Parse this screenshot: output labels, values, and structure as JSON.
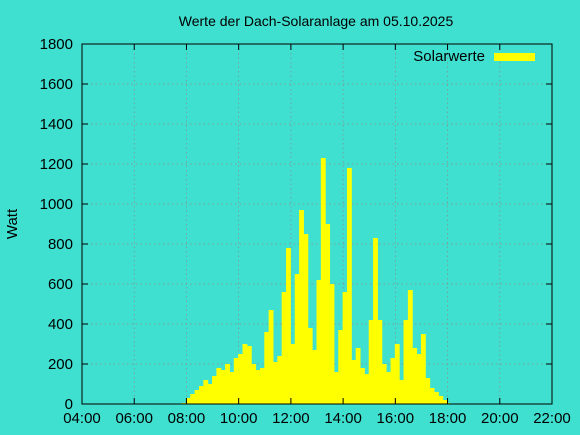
{
  "chart_data": {
    "type": "area",
    "title": "Werte der Dach-Solaranlage am 05.10.2025",
    "xlabel": "",
    "ylabel": "Watt",
    "legend": {
      "position": "top-right",
      "entries": [
        "Solarwerte"
      ]
    },
    "xlim": [
      "04:00",
      "22:00"
    ],
    "ylim": [
      0,
      1800
    ],
    "grid": true,
    "x_tick_labels": [
      "04:00",
      "06:00",
      "08:00",
      "10:00",
      "12:00",
      "14:00",
      "16:00",
      "18:00",
      "20:00",
      "22:00"
    ],
    "y_tick_labels": [
      "0",
      "200",
      "400",
      "600",
      "800",
      "1000",
      "1200",
      "1400",
      "1600",
      "1800"
    ],
    "series": [
      {
        "name": "Solarwerte",
        "color": "#ffff00",
        "x": [
          "07:50",
          "08:00",
          "08:10",
          "08:20",
          "08:30",
          "08:40",
          "08:50",
          "09:00",
          "09:10",
          "09:20",
          "09:30",
          "09:40",
          "09:50",
          "10:00",
          "10:10",
          "10:20",
          "10:30",
          "10:40",
          "10:50",
          "11:00",
          "11:10",
          "11:20",
          "11:30",
          "11:40",
          "11:50",
          "12:00",
          "12:10",
          "12:20",
          "12:30",
          "12:40",
          "12:50",
          "13:00",
          "13:10",
          "13:20",
          "13:30",
          "13:40",
          "13:50",
          "14:00",
          "14:10",
          "14:20",
          "14:30",
          "14:40",
          "14:50",
          "15:00",
          "15:10",
          "15:20",
          "15:30",
          "15:40",
          "15:50",
          "16:00",
          "16:10",
          "16:20",
          "16:30",
          "16:40",
          "16:50",
          "17:00",
          "17:10",
          "17:20",
          "17:30",
          "17:40",
          "17:50",
          "18:00",
          "18:05"
        ],
        "y": [
          5,
          30,
          50,
          70,
          90,
          120,
          100,
          140,
          180,
          170,
          200,
          160,
          230,
          250,
          300,
          290,
          200,
          170,
          180,
          360,
          470,
          210,
          240,
          560,
          780,
          300,
          650,
          970,
          850,
          380,
          270,
          620,
          1230,
          900,
          600,
          160,
          370,
          560,
          1180,
          220,
          280,
          180,
          150,
          420,
          830,
          420,
          200,
          160,
          230,
          300,
          120,
          420,
          570,
          280,
          250,
          350,
          130,
          80,
          60,
          40,
          20,
          5,
          0
        ]
      }
    ]
  }
}
